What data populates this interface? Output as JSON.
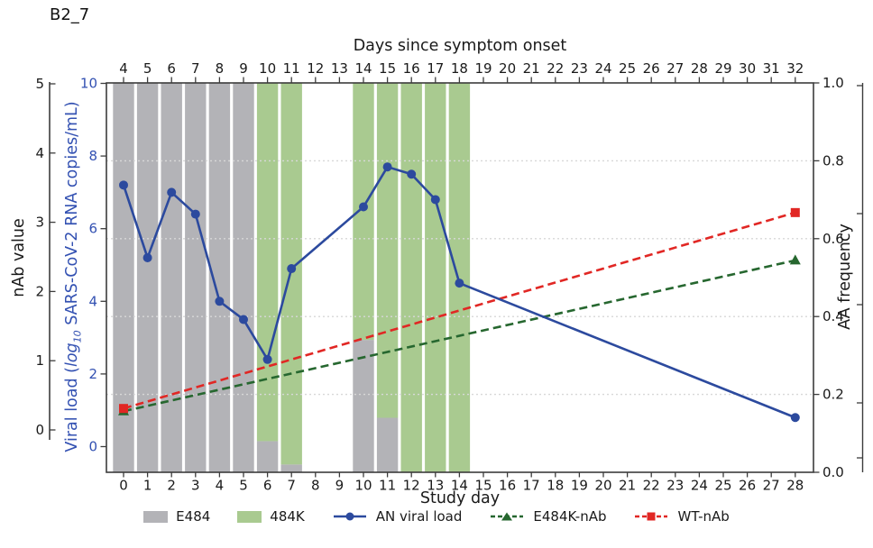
{
  "panel_title": "B2_7",
  "colors": {
    "c-blue": "#2c4a9e",
    "c-blue-label": "#3351b2",
    "c-red": "#e12724",
    "c-green": "#26672f",
    "c-bar-gray": "#b3b3b7",
    "c-bar-green": "#a9ca90",
    "c-axis": "#3c3c3c",
    "c-grid": "#d8d8d8",
    "c-text": "#1a1a1a"
  },
  "axes": {
    "top": {
      "title": "Days since symptom onset",
      "ticks": [
        4,
        5,
        6,
        7,
        8,
        9,
        10,
        11,
        12,
        13,
        14,
        15,
        16,
        17,
        18,
        19,
        20,
        21,
        22,
        23,
        24,
        25,
        26,
        27,
        28,
        29,
        30,
        31,
        32
      ]
    },
    "bottom": {
      "title": "Study day",
      "ticks": [
        0,
        1,
        2,
        3,
        4,
        5,
        6,
        7,
        8,
        9,
        10,
        11,
        12,
        13,
        14,
        15,
        16,
        17,
        18,
        19,
        20,
        21,
        22,
        23,
        24,
        25,
        26,
        27,
        28
      ]
    },
    "left_outer": {
      "title": "nAb value",
      "ticks": [
        5,
        4,
        3,
        2,
        1,
        0
      ]
    },
    "left_inner": {
      "title_pre": "Viral load (",
      "title_italic": "log",
      "title_sub": "10",
      "title_post": " SARS-CoV-2 RNA copies/mL)",
      "ticks": [
        10,
        8,
        6,
        4,
        2,
        0
      ]
    },
    "right": {
      "title": "AA frequency",
      "ticks": [
        "1.0",
        "0.8",
        "0.6",
        "0.4",
        "0.2",
        "0.0"
      ]
    }
  },
  "legend": {
    "items": [
      {
        "label": "E484"
      },
      {
        "label": "484K"
      },
      {
        "label": "AN viral load"
      },
      {
        "label": "E484K-nAb"
      },
      {
        "label": "WT-nAb"
      }
    ]
  },
  "chart_data": {
    "type": "combo",
    "title": "B2_7",
    "xlabel": "Study day",
    "secondary_xlabel": "Days since symptom onset",
    "symptom_day_offset": 4,
    "axis_ranges": {
      "viral_load_log10": [
        0,
        10
      ],
      "nab_value": [
        0,
        5
      ],
      "aa_frequency": [
        0.0,
        1.0
      ],
      "study_day": [
        0,
        28
      ]
    },
    "grid": {
      "y_values_aa": [
        0.2,
        0.4,
        0.6,
        0.8
      ],
      "style": "dotted",
      "legend_position": "bottom"
    },
    "bars_axis": "aa_frequency",
    "bars": [
      {
        "day": 0,
        "e484": 1.0,
        "k484": 0.0
      },
      {
        "day": 1,
        "e484": 1.0,
        "k484": 0.0
      },
      {
        "day": 2,
        "e484": 1.0,
        "k484": 0.0
      },
      {
        "day": 3,
        "e484": 1.0,
        "k484": 0.0
      },
      {
        "day": 4,
        "e484": 1.0,
        "k484": 0.0
      },
      {
        "day": 5,
        "e484": 1.0,
        "k484": 0.0
      },
      {
        "day": 6,
        "e484": 0.08,
        "k484": 0.92
      },
      {
        "day": 7,
        "e484": 0.02,
        "k484": 0.98
      },
      {
        "day": 10,
        "e484": 0.34,
        "k484": 0.66
      },
      {
        "day": 11,
        "e484": 0.14,
        "k484": 0.86
      },
      {
        "day": 12,
        "e484": 0.0,
        "k484": 1.0
      },
      {
        "day": 13,
        "e484": 0.0,
        "k484": 1.0
      },
      {
        "day": 14,
        "e484": 0.0,
        "k484": 1.0
      }
    ],
    "series": [
      {
        "name": "E484K-nAb",
        "type": "line-dashed",
        "axis": "nab_value",
        "marker": "triangle",
        "color_key": "c-green",
        "x": [
          0,
          28
        ],
        "y": [
          0.27,
          2.45
        ]
      },
      {
        "name": "WT-nAb",
        "type": "line-dashed",
        "axis": "nab_value",
        "marker": "square",
        "color_key": "c-red",
        "x": [
          0,
          28
        ],
        "y": [
          0.31,
          3.14
        ]
      },
      {
        "name": "AN viral load",
        "type": "line",
        "axis": "viral_load_log10",
        "marker": "circle",
        "color_key": "c-blue",
        "x": [
          0,
          1,
          2,
          3,
          4,
          5,
          6,
          7,
          10,
          11,
          12,
          13,
          14,
          28
        ],
        "y": [
          7.2,
          5.2,
          7.0,
          6.4,
          4.0,
          3.5,
          2.4,
          4.9,
          6.6,
          7.7,
          7.5,
          6.8,
          4.5,
          0.8
        ]
      }
    ]
  }
}
